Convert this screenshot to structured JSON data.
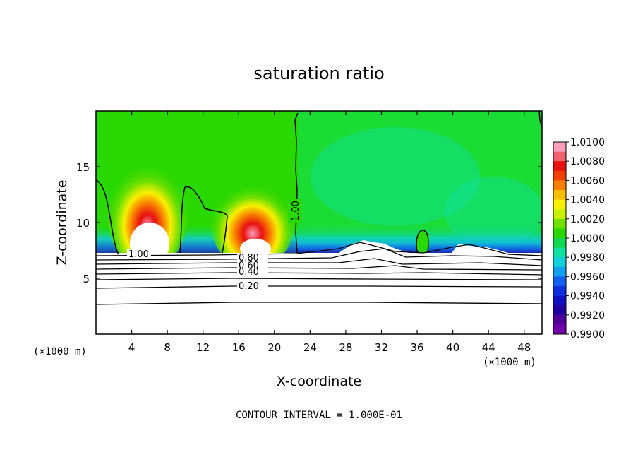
{
  "chart_data": {
    "type": "contour",
    "title": "saturation ratio",
    "xlabel": "X-coordinate",
    "ylabel": "Z-coordinate",
    "x_unit": "(×1000 m)",
    "z_unit": "(×1000 m)",
    "footer": "CONTOUR INTERVAL = 1.000E-01",
    "xlim": [
      0,
      50
    ],
    "ylim": [
      0,
      20
    ],
    "x_ticks": [
      4,
      8,
      12,
      16,
      20,
      24,
      28,
      32,
      36,
      40,
      44,
      48
    ],
    "x_tick_labels": [
      "4",
      "8",
      "12",
      "16",
      "20",
      "24",
      "28",
      "32",
      "36",
      "40",
      "44",
      "48"
    ],
    "y_ticks": [
      5,
      10,
      15
    ],
    "y_tick_labels": [
      "5",
      "10",
      "15"
    ],
    "colorbar": {
      "min": 0.99,
      "max": 1.01,
      "label_values": [
        1.01,
        1.008,
        1.006,
        1.004,
        1.002,
        1.0,
        0.998,
        0.996,
        0.994,
        0.992,
        0.99
      ],
      "labels": [
        "1.0100",
        "1.0080",
        "1.0060",
        "1.0040",
        "1.0020",
        "1.0000",
        "0.9980",
        "0.9960",
        "0.9940",
        "0.9920",
        "0.9900"
      ],
      "colors": [
        "#f8a0b8",
        "#f06070",
        "#e81010",
        "#f04000",
        "#f88000",
        "#f8c000",
        "#f8f000",
        "#c8f000",
        "#70e000",
        "#28d800",
        "#10d850",
        "#10e0a0",
        "#10d0d8",
        "#10a0f0",
        "#1060f0",
        "#1030e0",
        "#1010c0",
        "#2000a0",
        "#500098",
        "#7000a8"
      ]
    },
    "contour_labels": [
      "1.00",
      "1.00",
      "0.80",
      "0.60",
      "0.40",
      "0.20"
    ],
    "maxima": [
      {
        "x": 5.8,
        "z": 10.5,
        "value": 1.009
      },
      {
        "x": 17.6,
        "z": 9.6,
        "value": 1.008
      }
    ]
  }
}
